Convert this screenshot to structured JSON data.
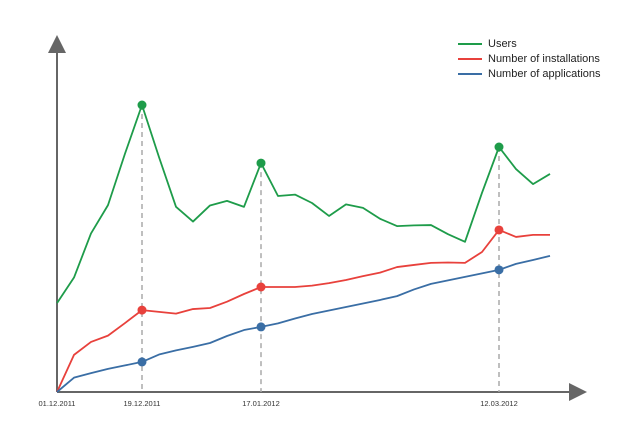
{
  "chart_data": {
    "type": "line",
    "categories": [
      "01.12.2011",
      null,
      null,
      null,
      null,
      "19.12.2011",
      null,
      null,
      null,
      null,
      null,
      null,
      "17.01.2012",
      null,
      null,
      null,
      null,
      null,
      null,
      null,
      null,
      null,
      null,
      null,
      null,
      null,
      "12.03.2012",
      null,
      null,
      null
    ],
    "series": [
      {
        "name": "Users",
        "color": "#1e9c4a",
        "values": [
          25.4,
          32.7,
          45.3,
          53.4,
          68.1,
          82,
          67.1,
          52.9,
          48.7,
          53.3,
          54.6,
          52.9,
          65.4,
          56,
          56.4,
          54,
          50.3,
          53.6,
          52.6,
          49.5,
          47.4,
          47.6,
          47.7,
          45.1,
          42.9,
          56.9,
          70,
          63.7,
          59.4,
          62.3
        ]
      },
      {
        "name": "Number of installations",
        "color": "#e8413c",
        "values": [
          0,
          10.6,
          14.3,
          16.1,
          19.7,
          23.4,
          22.9,
          22.4,
          23.7,
          24,
          25.8,
          28,
          30,
          30,
          30,
          30.4,
          31.1,
          32,
          33.1,
          34.1,
          35.7,
          36.3,
          36.9,
          37,
          36.9,
          40,
          46.3,
          44.3,
          44.9,
          44.9
        ]
      },
      {
        "name": "Number of applications",
        "color": "#3a6ea5",
        "values": [
          0,
          4.1,
          5.4,
          6.6,
          7.6,
          8.6,
          10.7,
          11.9,
          12.9,
          14,
          16,
          17.7,
          18.6,
          19.6,
          21,
          22.3,
          23.3,
          24.3,
          25.3,
          26.3,
          27.4,
          29.3,
          30.9,
          31.9,
          32.9,
          33.9,
          34.9,
          36.6,
          37.7,
          38.9
        ]
      }
    ],
    "ylim": [
      0,
      100
    ],
    "legend": "top-right"
  }
}
